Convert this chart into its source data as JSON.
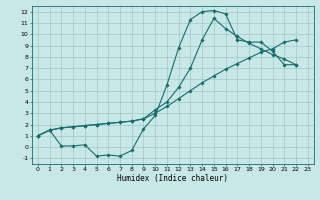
{
  "xlabel": "Humidex (Indice chaleur)",
  "bg_color": "#c8e8e8",
  "grid_color": "#a0c8c8",
  "line_color": "#1a6b6b",
  "xlim": [
    -0.5,
    23.5
  ],
  "ylim": [
    -1.5,
    12.5
  ],
  "xticks": [
    0,
    1,
    2,
    3,
    4,
    5,
    6,
    7,
    8,
    9,
    10,
    11,
    12,
    13,
    14,
    15,
    16,
    17,
    18,
    19,
    20,
    21,
    22,
    23
  ],
  "yticks": [
    -1,
    0,
    1,
    2,
    3,
    4,
    5,
    6,
    7,
    8,
    9,
    10,
    11,
    12
  ],
  "curve1_x": [
    0,
    1,
    2,
    3,
    4,
    5,
    6,
    7,
    8,
    9,
    10,
    11,
    12,
    13,
    14,
    15,
    16,
    17,
    18,
    19,
    20,
    21,
    22
  ],
  "curve1_y": [
    1.0,
    1.5,
    0.1,
    0.1,
    0.2,
    -0.8,
    -0.7,
    -0.8,
    -0.3,
    1.6,
    2.8,
    5.5,
    8.8,
    11.3,
    12.0,
    12.1,
    11.8,
    9.5,
    9.3,
    9.3,
    8.5,
    7.3,
    7.3
  ],
  "curve2_x": [
    0,
    1,
    2,
    3,
    4,
    5,
    6,
    7,
    8,
    9,
    10,
    11,
    12,
    13,
    14,
    15,
    16,
    17,
    18,
    19,
    20,
    21,
    22
  ],
  "curve2_y": [
    1.0,
    1.5,
    1.7,
    1.8,
    1.9,
    2.0,
    2.1,
    2.2,
    2.3,
    2.5,
    3.0,
    3.6,
    4.3,
    5.0,
    5.7,
    6.3,
    6.9,
    7.4,
    7.9,
    8.4,
    8.7,
    9.3,
    9.5
  ],
  "curve3_x": [
    0,
    1,
    2,
    3,
    4,
    5,
    6,
    7,
    8,
    9,
    10,
    11,
    12,
    13,
    14,
    15,
    16,
    17,
    18,
    19,
    20,
    21,
    22
  ],
  "curve3_y": [
    1.0,
    1.5,
    1.7,
    1.8,
    1.9,
    2.0,
    2.1,
    2.2,
    2.3,
    2.5,
    3.3,
    4.0,
    5.3,
    7.0,
    9.5,
    11.4,
    10.5,
    9.8,
    9.2,
    8.7,
    8.2,
    7.8,
    7.3
  ],
  "tick_fontsize": 4.5,
  "xlabel_fontsize": 5.5
}
